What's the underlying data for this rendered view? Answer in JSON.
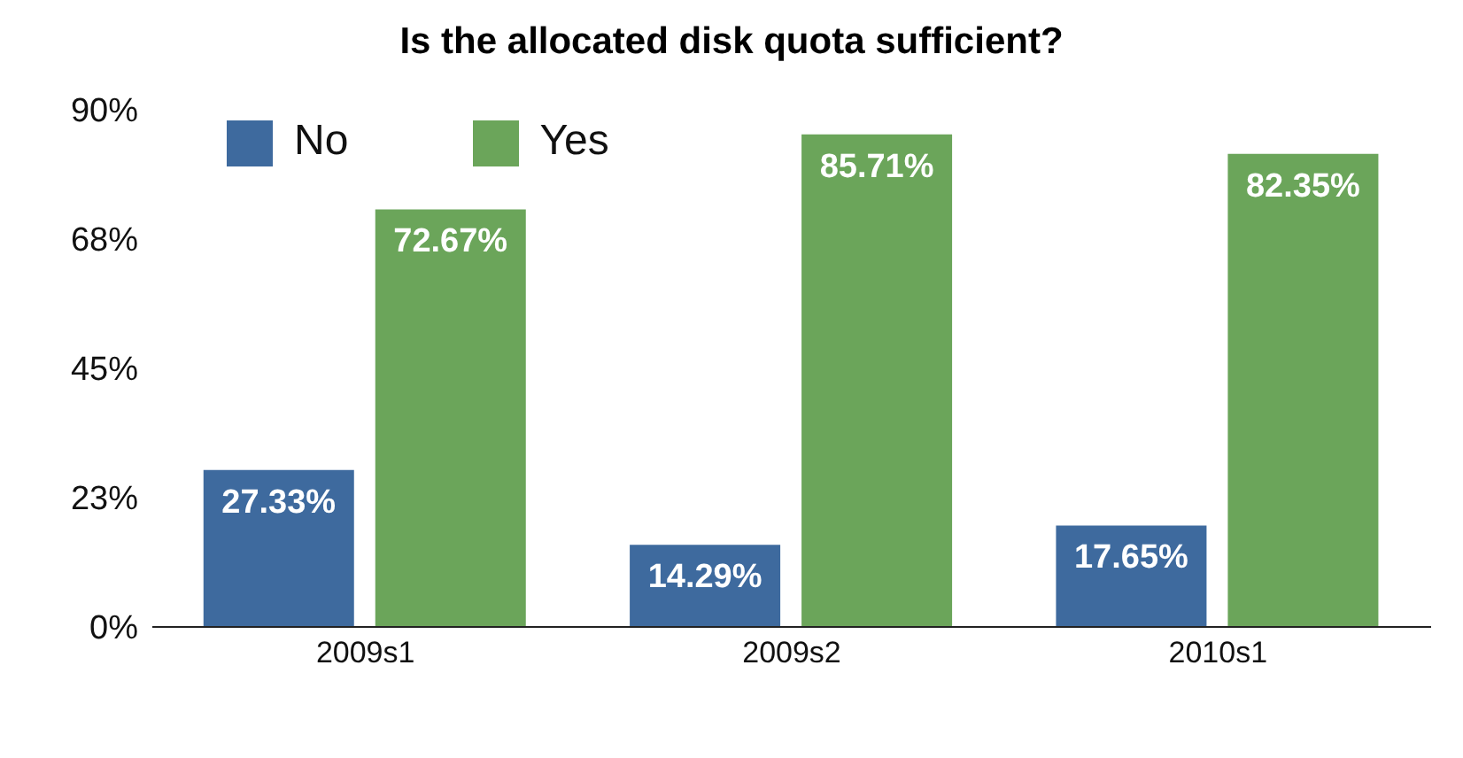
{
  "chart_data": {
    "type": "bar",
    "title": "Is the allocated disk quota sufficient?",
    "categories": [
      "2009s1",
      "2009s2",
      "2010s1"
    ],
    "series": [
      {
        "name": "No",
        "color": "#3e6a9e",
        "values": [
          27.33,
          14.29,
          17.65
        ],
        "value_labels": [
          "27.33%",
          "14.29%",
          "17.65%"
        ]
      },
      {
        "name": "Yes",
        "color": "#6ba55a",
        "values": [
          72.67,
          85.71,
          82.35
        ],
        "value_labels": [
          "72.67%",
          "85.71%",
          "82.35%"
        ]
      }
    ],
    "ylim": [
      0,
      90
    ],
    "yticks": [
      {
        "value": 0,
        "label": "0%"
      },
      {
        "value": 22.5,
        "label": "23%"
      },
      {
        "value": 45,
        "label": "45%"
      },
      {
        "value": 67.5,
        "label": "68%"
      },
      {
        "value": 90,
        "label": "90%"
      }
    ],
    "legend": "top left"
  }
}
